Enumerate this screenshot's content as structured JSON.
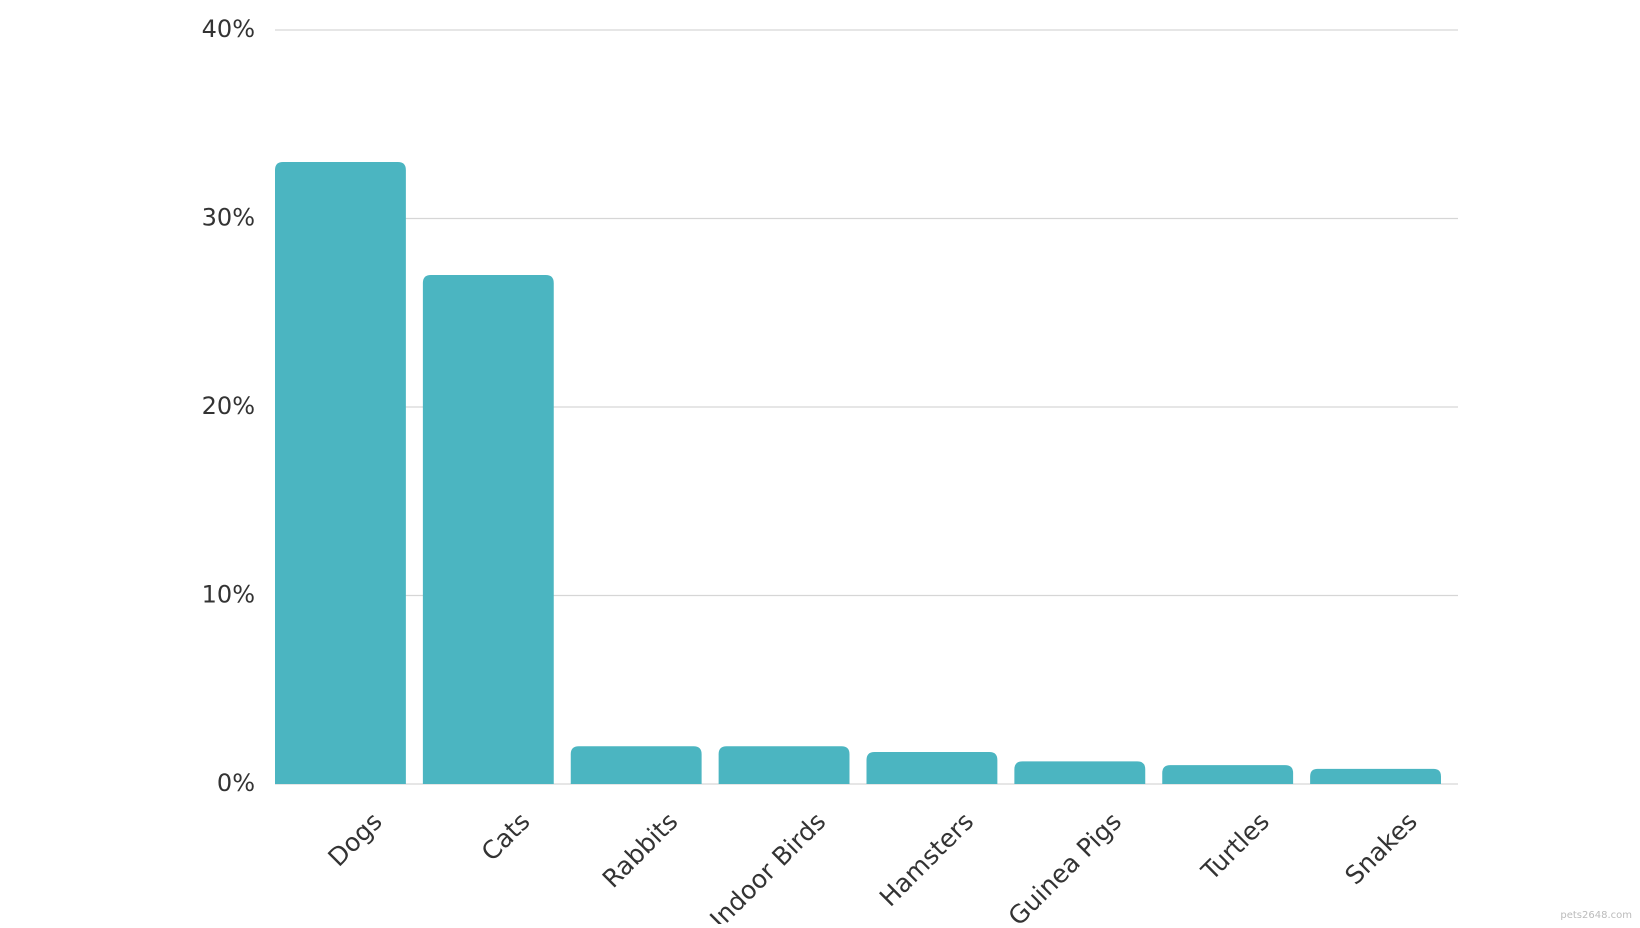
{
  "chart_data": {
    "type": "bar",
    "categories": [
      "Dogs",
      "Cats",
      "Rabbits",
      "Indoor Birds",
      "Hamsters",
      "Guinea Pigs",
      "Turtles",
      "Snakes"
    ],
    "values": [
      33,
      27,
      2,
      2,
      1.7,
      1.2,
      1,
      0.8
    ],
    "color": "#4bb5c1",
    "ylim": [
      0,
      40
    ],
    "yticks": [
      {
        "value": 0,
        "label": "0%"
      },
      {
        "value": 10,
        "label": "10%"
      },
      {
        "value": 20,
        "label": "20%"
      },
      {
        "value": 30,
        "label": "30%"
      },
      {
        "value": 40,
        "label": "40%"
      }
    ],
    "grid": true
  },
  "watermark": "pets2648.com"
}
